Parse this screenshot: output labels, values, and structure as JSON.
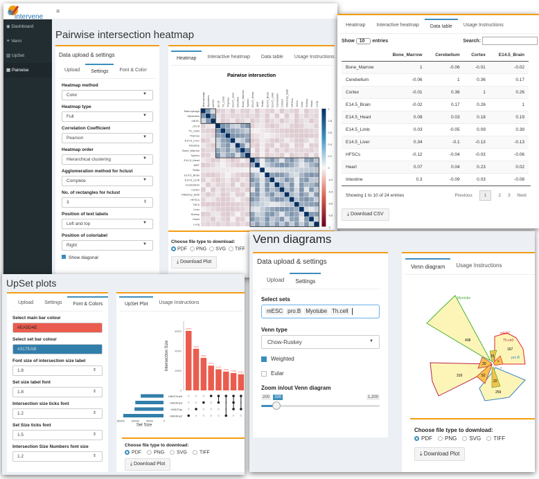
{
  "pairwise": {
    "logo": "intervene",
    "sidebar": [
      {
        "label": "Dashboard",
        "icon": "dashboard-icon"
      },
      {
        "label": "Venn",
        "icon": "venn-icon"
      },
      {
        "label": "UpSet",
        "icon": "bar-chart-icon"
      },
      {
        "label": "Pairwise",
        "icon": "grid-icon"
      }
    ],
    "title": "Pairwise intersection heatmap",
    "settings_title": "Data upload & settings",
    "settings_tabs": [
      "Upload",
      "Settings",
      "Font & Color"
    ],
    "fields": [
      {
        "label": "Heatmap method",
        "value": "Color"
      },
      {
        "label": "Heatmap type",
        "value": "Full"
      },
      {
        "label": "Correlation Coefficient",
        "value": "Pearson"
      },
      {
        "label": "Heatmap order",
        "value": "Hierarchical clustering"
      },
      {
        "label": "Agglomeration method for hclust",
        "value": "Complete"
      },
      {
        "label": "No. of rectangles for hclust",
        "value": "3"
      },
      {
        "label": "Position of text labels",
        "value": "Left and top"
      },
      {
        "label": "Position of colorlabel",
        "value": "Right"
      }
    ],
    "show_diagonal": "Show diagonal",
    "plot_tabs": [
      "Heatmap",
      "Interactive heatmap",
      "Data table",
      "Usage Instructions"
    ],
    "heatmap_title": "Pairwise intersection",
    "labels": [
      "Macrophage",
      "Myotubes",
      "mESC",
      "pro.B",
      "Th_Cells",
      "Thymus",
      "E14.5_Liver",
      "Intestine",
      "Bone_Marrow",
      "Spleen",
      "E14.5_Heart",
      "MEF",
      "Testis",
      "E14.5_Brain",
      "E14.5_Limb",
      "Cerebellum",
      "Cortex",
      "Olfactory_Bulb",
      "HFSCs",
      "TACs",
      "Liver",
      "Kidney",
      "Heart",
      "Lung"
    ],
    "colorbar_ticks": [
      "1",
      "0.8",
      "0.6",
      "0.4",
      "0.2",
      "0",
      "-0.2",
      "-0.4",
      "-0.6",
      "-0.8",
      "-1"
    ],
    "colors": {
      "positive": "#053061",
      "negative": "#67001f",
      "neutral": "#f7f7f7"
    },
    "download_label": "Choose file type to download:",
    "file_types": [
      "PDF",
      "PNG",
      "SVG",
      "TIFF"
    ],
    "download_button": "Download Plot"
  },
  "datatable": {
    "tabs": [
      "Heatmap",
      "Interactive heatmap",
      "Data table",
      "Usage Instructions"
    ],
    "show": "Show",
    "entries_value": "10",
    "entries": "entries",
    "search": "Search:",
    "columns": [
      "",
      "Bone_Marrow",
      "Cerebellum",
      "Cortex",
      "E14.5_Brain"
    ],
    "rows": [
      [
        "Bone_Marrow",
        "1",
        "-0.06",
        "-0.01",
        "-0.02"
      ],
      [
        "Cerebellum",
        "-0.06",
        "1",
        "0.36",
        "0.17"
      ],
      [
        "Cortex",
        "-0.01",
        "0.36",
        "1",
        "0.26"
      ],
      [
        "E14.5_Brain",
        "-0.02",
        "0.17",
        "0.26",
        "1"
      ],
      [
        "E14.5_Heart",
        "0.08",
        "0.03",
        "0.18",
        "0.19"
      ],
      [
        "E14.5_Limb",
        "0.03",
        "-0.05",
        "0.09",
        "0.39"
      ],
      [
        "E14.5_Liver",
        "0.34",
        "-0.1",
        "-0.13",
        "-0.13"
      ],
      [
        "HFSCs",
        "-0.12",
        "-0.04",
        "-0.03",
        "-0.06"
      ],
      [
        "Heart",
        "0.07",
        "0.04",
        "0.23",
        "0.02"
      ],
      [
        "Intestine",
        "0.3",
        "-0.09",
        "0.03",
        "-0.08"
      ]
    ],
    "info": "Showing 1 to 10 of 24 entries",
    "pages": [
      "Previous",
      "1",
      "2",
      "3",
      "Next"
    ],
    "csv_button": "Download CSV"
  },
  "upset": {
    "title": "UpSet plots",
    "settings_tabs": [
      "Upload",
      "Settings",
      "Font & Colors"
    ],
    "main_bar_label": "Select main bar colour",
    "main_bar_color": "#EA5D4E",
    "set_bar_label": "Select set bar colour",
    "set_bar_color": "#317EAB",
    "fields": [
      {
        "label": "Font size of intersection size label",
        "value": "1.8"
      },
      {
        "label": "Set size label font",
        "value": "1.8"
      },
      {
        "label": "Intersection size ticks font",
        "value": "1.2"
      },
      {
        "label": "Set Size ticks font",
        "value": "1.5"
      },
      {
        "label": "Intersection Size Numbers font size",
        "value": "1.2"
      }
    ],
    "plot_tabs": [
      "UpSet Plot",
      "Usage Instructions"
    ],
    "ylabel": "Intersection Size",
    "yticks": [
      "0",
      "20000",
      "40000",
      "60000"
    ],
    "bars": [
      60200,
      42104,
      32900,
      25074,
      21347,
      19029,
      17585,
      16321
    ],
    "sets": [
      "H3K27me3",
      "H3K4me3",
      "H3K27ac",
      "H3K4me2"
    ],
    "set_sizes": [
      85000,
      105000,
      108000,
      150000
    ],
    "set_ticks": [
      "150000",
      "100000",
      "50000",
      "0"
    ],
    "set_size_label": "Set Size",
    "matrix": [
      [
        3
      ],
      [
        2
      ],
      [
        1
      ],
      [
        0
      ],
      [
        1,
        0
      ],
      [
        3,
        0
      ],
      [
        2,
        1,
        0
      ],
      [
        2,
        0
      ]
    ],
    "download_label": "Choose file type to download:",
    "file_types": [
      "PDF",
      "PNG",
      "SVG",
      "TIFF"
    ],
    "download_button": "Download Plot"
  },
  "venn": {
    "title": "Venn diagrams",
    "settings_title": "Data upload & settings",
    "settings_tabs": [
      "Upload",
      "Settings"
    ],
    "select_sets_label": "Select sets",
    "selected_sets": [
      "mESC",
      "pro.B",
      "Myotube",
      "Th.cell"
    ],
    "venn_type_label": "Venn type",
    "venn_type": "Chow-Ruskey",
    "weighted": "Weighted",
    "eular": "Eular",
    "zoom_label": "Zoom in/out Venn diagram",
    "zoom_min": "200",
    "zoom_value": "330",
    "zoom_max": "1,200",
    "zoom_fraction": 0.13,
    "plot_tabs": [
      "Venn diagram",
      "Usage Instructions"
    ],
    "set_labels": [
      "Myotube",
      "mESC",
      "pro.B",
      "Th.cell"
    ],
    "region_values": [
      "438",
      "319",
      "259",
      "167",
      "52",
      "22",
      "20",
      "15",
      "9",
      "7"
    ],
    "download_label": "Choose file type to download:",
    "file_types": [
      "PDF",
      "PNG",
      "SVG",
      "TIFF"
    ],
    "download_button": "Download Plot"
  }
}
